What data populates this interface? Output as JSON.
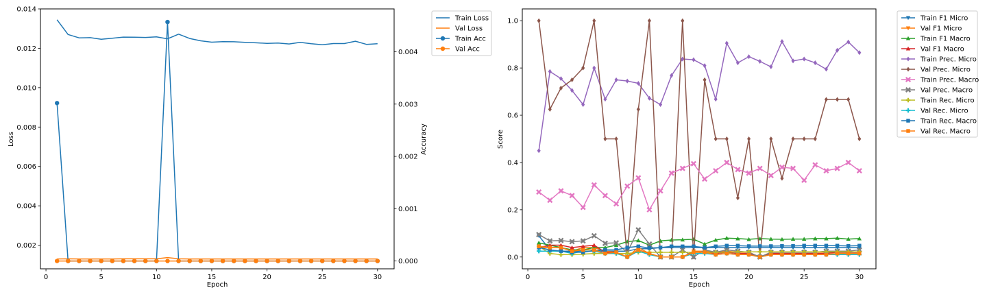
{
  "chart_data": [
    {
      "type": "line",
      "x": [
        1,
        2,
        3,
        4,
        5,
        6,
        7,
        8,
        9,
        10,
        11,
        12,
        13,
        14,
        15,
        16,
        17,
        18,
        19,
        20,
        21,
        22,
        23,
        24,
        25,
        26,
        27,
        28,
        29,
        30
      ],
      "xlabel": "Epoch",
      "ylabel": "Loss",
      "ylabel_right": "Accuracy",
      "xlim": [
        -0.5,
        31.5
      ],
      "ylim": [
        0.0008,
        0.014
      ],
      "ylim_right": [
        -0.00015,
        0.00482
      ],
      "x_ticks": [
        0,
        5,
        10,
        15,
        20,
        25,
        30
      ],
      "y_ticks": [
        0.002,
        0.004,
        0.006,
        0.008,
        0.01,
        0.012,
        0.014
      ],
      "y_tick_labels": [
        "0.002",
        "0.004",
        "0.006",
        "0.008",
        "0.010",
        "0.012",
        "0.014"
      ],
      "y_ticks_right": [
        0.0,
        0.001,
        0.002,
        0.003,
        0.004
      ],
      "y_tick_labels_right": [
        "0.000",
        "0.001",
        "0.002",
        "0.003",
        "0.004"
      ],
      "legend_position": "outside-right-top",
      "grid": false,
      "series": [
        {
          "name": "Train Loss",
          "axis": "left",
          "color": "#1f77b4",
          "marker": "none",
          "values": [
            0.01345,
            0.0127,
            0.01253,
            0.01254,
            0.01246,
            0.01251,
            0.01257,
            0.01256,
            0.01255,
            0.01258,
            0.01248,
            0.01272,
            0.0125,
            0.01238,
            0.01231,
            0.01234,
            0.01233,
            0.0123,
            0.01228,
            0.01225,
            0.01227,
            0.01222,
            0.0123,
            0.01223,
            0.01218,
            0.01224,
            0.01224,
            0.01236,
            0.0122,
            0.01223
          ]
        },
        {
          "name": "Val Loss",
          "axis": "left",
          "color": "#ff7f0e",
          "marker": "none",
          "values": [
            0.0013,
            0.00131,
            0.0013,
            0.0013,
            0.0013,
            0.0013,
            0.00131,
            0.00131,
            0.00131,
            0.00131,
            0.00137,
            0.00131,
            0.0013,
            0.0013,
            0.0013,
            0.0013,
            0.0013,
            0.0013,
            0.0013,
            0.0013,
            0.0013,
            0.0013,
            0.0013,
            0.0013,
            0.0013,
            0.0013,
            0.0013,
            0.0013,
            0.0013,
            0.0013
          ]
        },
        {
          "name": "Train Acc",
          "axis": "right",
          "color": "#1f77b4",
          "marker": "circle",
          "values": [
            0.00302,
            0,
            0,
            0,
            0,
            0,
            0,
            0,
            0,
            0,
            0.00457,
            0,
            0,
            0,
            0,
            0,
            0,
            0,
            0,
            0,
            0,
            0,
            0,
            0,
            0,
            0,
            0,
            0,
            0,
            0
          ]
        },
        {
          "name": "Val Acc",
          "axis": "right",
          "color": "#ff7f0e",
          "marker": "circle",
          "values": [
            0,
            0,
            0,
            0,
            0,
            0,
            0,
            0,
            0,
            0,
            0,
            0,
            0,
            0,
            0,
            0,
            0,
            0,
            0,
            0,
            0,
            0,
            0,
            0,
            0,
            0,
            0,
            0,
            0,
            0
          ]
        }
      ]
    },
    {
      "type": "line",
      "x": [
        1,
        2,
        3,
        4,
        5,
        6,
        7,
        8,
        9,
        10,
        11,
        12,
        13,
        14,
        15,
        16,
        17,
        18,
        19,
        20,
        21,
        22,
        23,
        24,
        25,
        26,
        27,
        28,
        29,
        30
      ],
      "xlabel": "Epoch",
      "ylabel": "Score",
      "xlim": [
        -0.5,
        31.5
      ],
      "ylim": [
        -0.05,
        1.05
      ],
      "x_ticks": [
        0,
        5,
        10,
        15,
        20,
        25,
        30
      ],
      "y_ticks": [
        0.0,
        0.2,
        0.4,
        0.6,
        0.8,
        1.0
      ],
      "y_tick_labels": [
        "0.0",
        "0.2",
        "0.4",
        "0.6",
        "0.8",
        "1.0"
      ],
      "legend_position": "outside-right-top",
      "grid": false,
      "series": [
        {
          "name": "Train F1 Micro",
          "color": "#1f77b4",
          "marker": "triangle_down",
          "values": [
            0.09,
            0.03,
            0.025,
            0.025,
            0.025,
            0.025,
            0.025,
            0.025,
            0.025,
            0.035,
            0.035,
            0.04,
            0.04,
            0.04,
            0.04,
            0.04,
            0.04,
            0.04,
            0.04,
            0.04,
            0.04,
            0.04,
            0.04,
            0.04,
            0.04,
            0.04,
            0.04,
            0.04,
            0.04,
            0.04
          ]
        },
        {
          "name": "Val F1 Micro",
          "color": "#ff7f0e",
          "marker": "triangle_down",
          "values": [
            0.04,
            0.04,
            0.04,
            0.025,
            0.04,
            0.04,
            0.025,
            0.02,
            0.0,
            0.04,
            0.015,
            0.0,
            0.0,
            0.0,
            0.025,
            0.025,
            0.02,
            0.025,
            0.02,
            0.02,
            0.0,
            0.02,
            0.02,
            0.02,
            0.02,
            0.02,
            0.02,
            0.02,
            0.02,
            0.02
          ]
        },
        {
          "name": "Train F1 Macro",
          "color": "#2ca02c",
          "marker": "triangle_up",
          "values": [
            0.06,
            0.05,
            0.04,
            0.03,
            0.03,
            0.04,
            0.04,
            0.05,
            0.065,
            0.07,
            0.05,
            0.068,
            0.072,
            0.073,
            0.075,
            0.055,
            0.072,
            0.08,
            0.078,
            0.075,
            0.078,
            0.076,
            0.075,
            0.076,
            0.076,
            0.078,
            0.078,
            0.08,
            0.076,
            0.078
          ]
        },
        {
          "name": "Val F1 Macro",
          "color": "#d62728",
          "marker": "triangle_up",
          "values": [
            0.04,
            0.05,
            0.05,
            0.04,
            0.045,
            0.05,
            0.02,
            0.02,
            0.0,
            0.03,
            0.015,
            0.0,
            0.0,
            0.0,
            0.02,
            0.02,
            0.015,
            0.02,
            0.015,
            0.015,
            0.0,
            0.015,
            0.015,
            0.015,
            0.015,
            0.015,
            0.015,
            0.02,
            0.02,
            0.02
          ]
        },
        {
          "name": "Train Prec. Micro",
          "color": "#9467bd",
          "marker": "diamond",
          "values": [
            0.45,
            0.785,
            0.755,
            0.705,
            0.645,
            0.8,
            0.668,
            0.75,
            0.745,
            0.735,
            0.672,
            0.645,
            0.768,
            0.838,
            0.835,
            0.81,
            0.668,
            0.905,
            0.822,
            0.848,
            0.828,
            0.805,
            0.912,
            0.83,
            0.838,
            0.822,
            0.795,
            0.875,
            0.91,
            0.865
          ]
        },
        {
          "name": "Val Prec. Micro",
          "color": "#8c564b",
          "marker": "diamond",
          "values": [
            1.0,
            0.625,
            0.715,
            0.75,
            0.8,
            1.0,
            0.5,
            0.5,
            0.0,
            0.625,
            1.0,
            0.0,
            0.0,
            1.0,
            0.0,
            0.75,
            0.5,
            0.5,
            0.25,
            0.5,
            0.0,
            0.5,
            0.333,
            0.5,
            0.5,
            0.5,
            0.667,
            0.667,
            0.667,
            0.5
          ]
        },
        {
          "name": "Train Prec. Macro",
          "color": "#e377c2",
          "marker": "x",
          "values": [
            0.275,
            0.24,
            0.28,
            0.26,
            0.21,
            0.305,
            0.26,
            0.225,
            0.3,
            0.335,
            0.2,
            0.28,
            0.355,
            0.375,
            0.395,
            0.33,
            0.365,
            0.4,
            0.37,
            0.355,
            0.375,
            0.345,
            0.38,
            0.375,
            0.325,
            0.39,
            0.365,
            0.375,
            0.4,
            0.365
          ]
        },
        {
          "name": "Val Prec. Macro",
          "color": "#7f7f7f",
          "marker": "x",
          "values": [
            0.095,
            0.068,
            0.07,
            0.065,
            0.068,
            0.09,
            0.058,
            0.06,
            0.02,
            0.115,
            0.055,
            0.0,
            0.0,
            0.03,
            0.0,
            0.03,
            0.02,
            0.03,
            0.025,
            0.02,
            0.0,
            0.02,
            0.02,
            0.02,
            0.02,
            0.02,
            0.025,
            0.025,
            0.025,
            0.03
          ]
        },
        {
          "name": "Train Rec. Micro",
          "color": "#bcbd22",
          "marker": "plus",
          "values": [
            0.045,
            0.015,
            0.01,
            0.01,
            0.012,
            0.015,
            0.015,
            0.015,
            0.015,
            0.02,
            0.02,
            0.02,
            0.02,
            0.02,
            0.02,
            0.02,
            0.02,
            0.02,
            0.022,
            0.022,
            0.022,
            0.022,
            0.022,
            0.022,
            0.022,
            0.022,
            0.022,
            0.022,
            0.022,
            0.022
          ]
        },
        {
          "name": "Val Rec. Micro",
          "color": "#17becf",
          "marker": "plus",
          "values": [
            0.025,
            0.025,
            0.025,
            0.015,
            0.025,
            0.025,
            0.015,
            0.015,
            0.0,
            0.025,
            0.01,
            0.0,
            0.0,
            0.0,
            0.015,
            0.015,
            0.01,
            0.015,
            0.01,
            0.01,
            0.0,
            0.01,
            0.01,
            0.01,
            0.01,
            0.01,
            0.01,
            0.01,
            0.01,
            0.01
          ]
        },
        {
          "name": "Train Rec. Macro",
          "color": "#1f77b4",
          "marker": "square",
          "values": [
            0.04,
            0.03,
            0.025,
            0.02,
            0.02,
            0.028,
            0.03,
            0.03,
            0.04,
            0.045,
            0.038,
            0.04,
            0.045,
            0.045,
            0.045,
            0.04,
            0.045,
            0.048,
            0.048,
            0.046,
            0.046,
            0.046,
            0.047,
            0.047,
            0.048,
            0.048,
            0.048,
            0.048,
            0.047,
            0.048
          ]
        },
        {
          "name": "Val Rec. Macro",
          "color": "#ff7f0e",
          "marker": "square",
          "values": [
            0.045,
            0.04,
            0.04,
            0.025,
            0.03,
            0.03,
            0.015,
            0.02,
            0.0,
            0.03,
            0.015,
            0.0,
            0.0,
            0.0,
            0.02,
            0.02,
            0.01,
            0.015,
            0.01,
            0.01,
            0.0,
            0.01,
            0.01,
            0.01,
            0.01,
            0.01,
            0.01,
            0.015,
            0.015,
            0.015
          ]
        }
      ]
    }
  ]
}
